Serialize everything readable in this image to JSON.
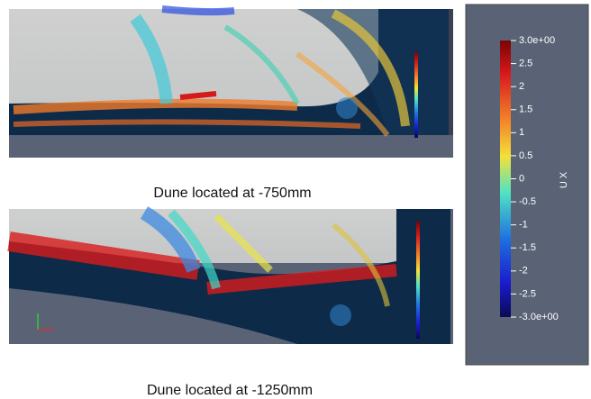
{
  "figure": {
    "panels": [
      {
        "caption": "Dune located at -750mm"
      },
      {
        "caption": "Dune located at -1250mm"
      }
    ],
    "colorbar": {
      "label": "U X",
      "range": [
        -3,
        3
      ],
      "ticks": [
        {
          "value": 3,
          "label": "3.0e+00"
        },
        2.5,
        2,
        1.5,
        1,
        0.5,
        0,
        -0.5,
        -1,
        -1.5,
        -2,
        -2.5,
        {
          "value": -3,
          "label": "-3.0e+00"
        }
      ]
    }
  }
}
